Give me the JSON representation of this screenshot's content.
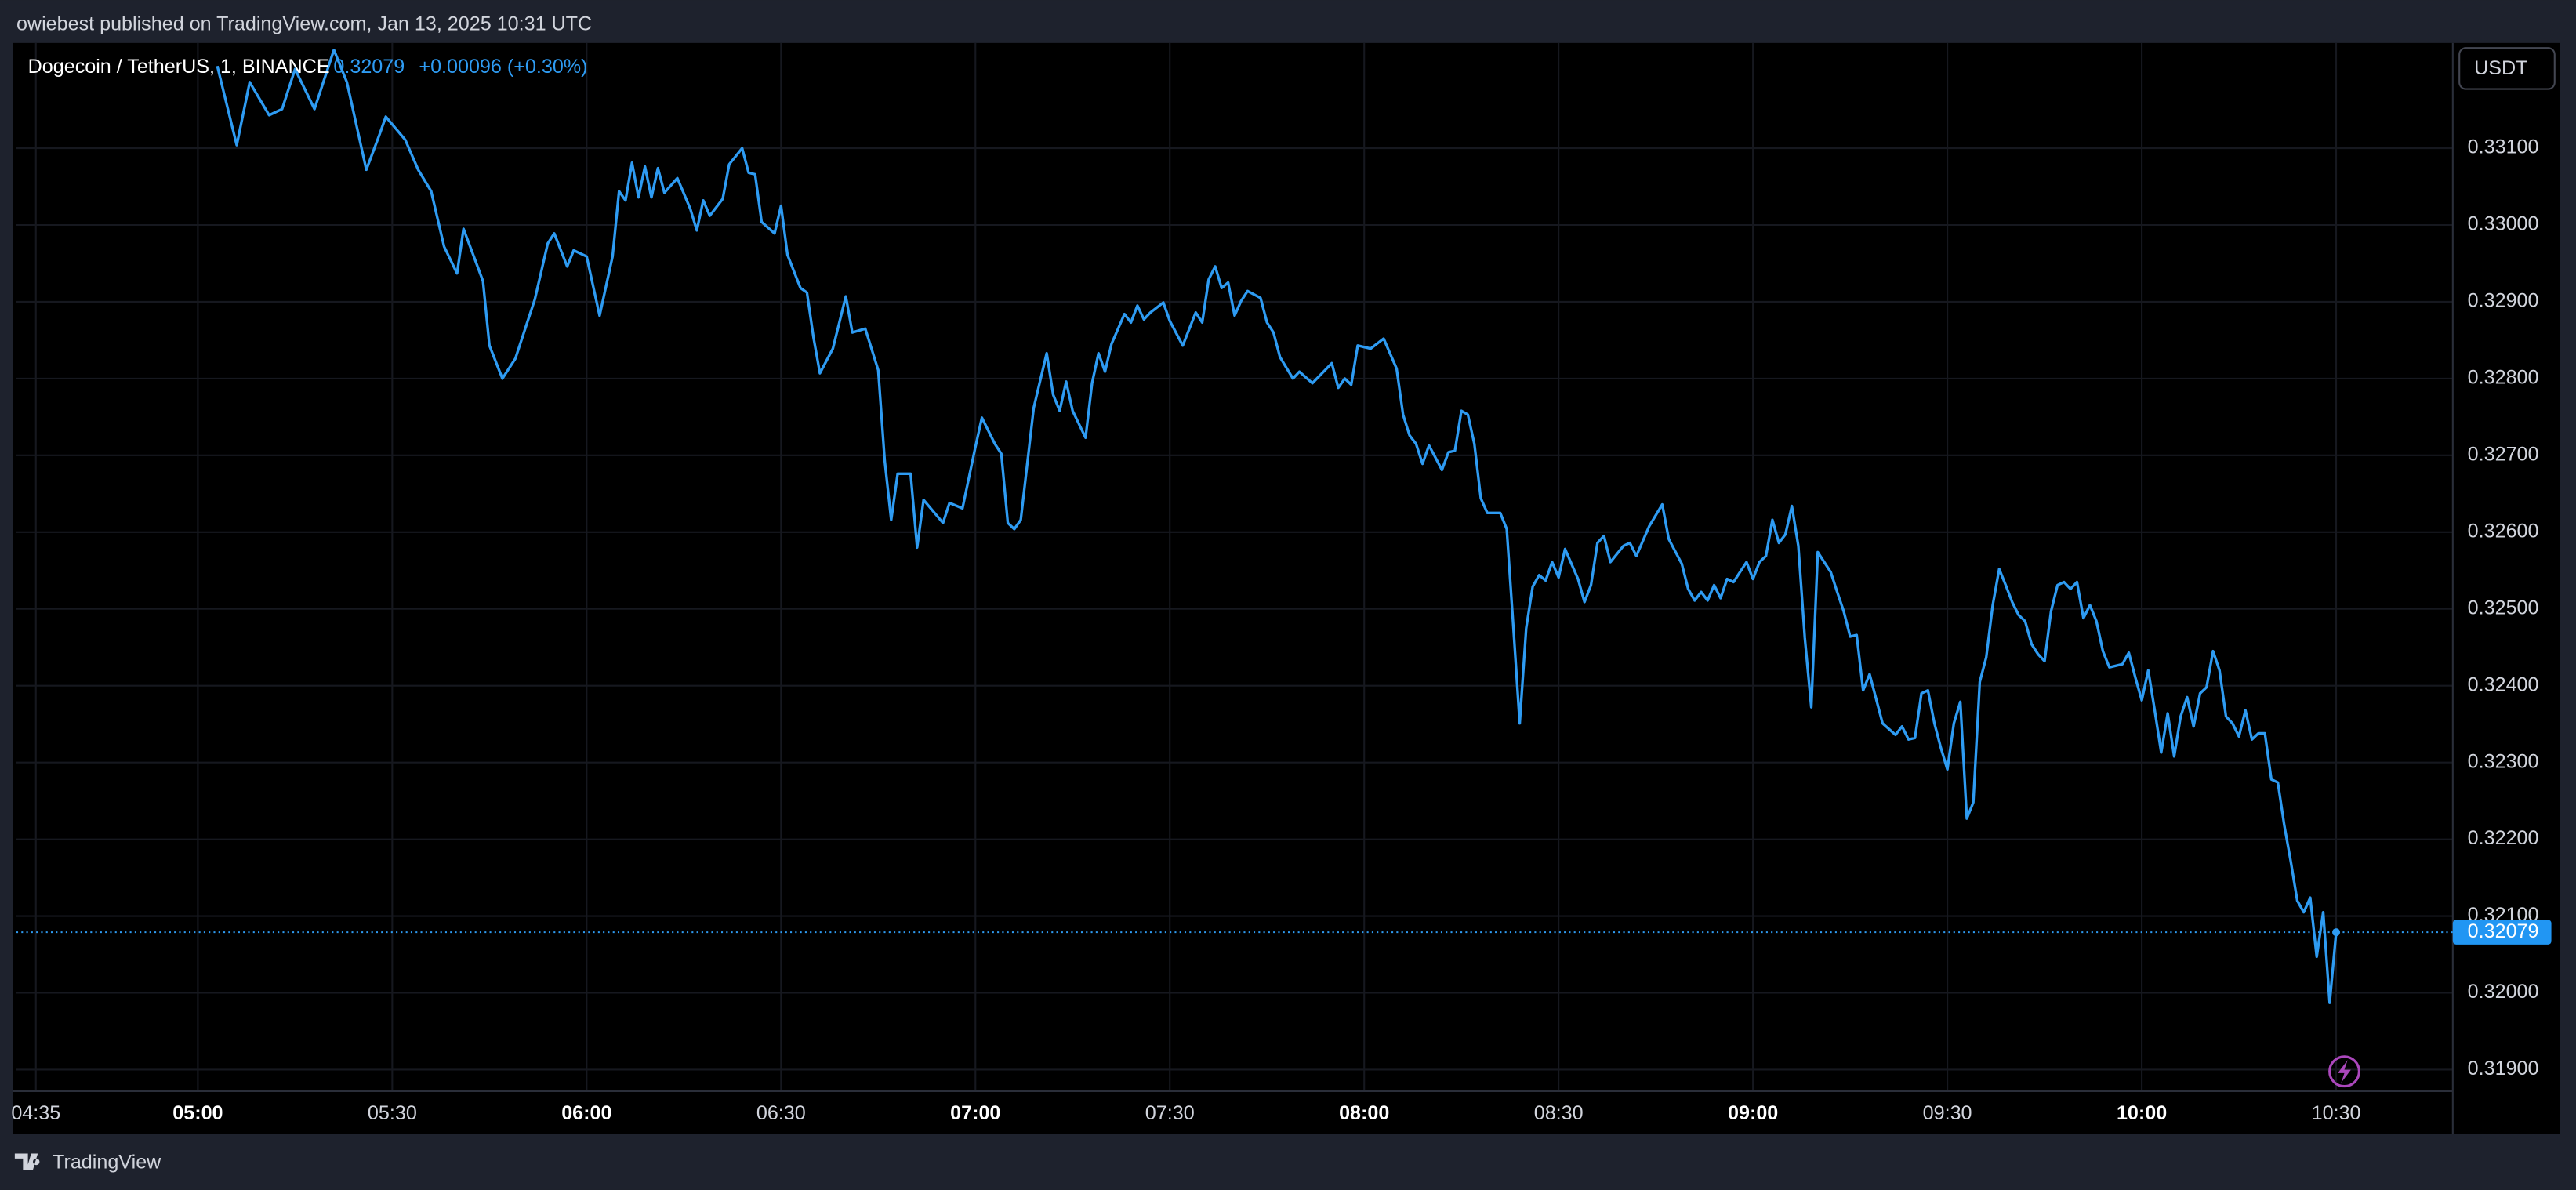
{
  "chart_data": {
    "type": "line",
    "header": "owiebest published on TradingView.com, Jan 13, 2025 10:31 UTC",
    "symbol": "Dogecoin / TetherUS, 1, BINANCE",
    "last_price": 0.32079,
    "change": "+0.00096 (+0.30%)",
    "currency": "USDT",
    "brand": "TradingView",
    "color": "#2e9bf2",
    "grid": true,
    "x": [
      "05:03",
      "05:06",
      "05:08",
      "05:11",
      "05:13",
      "05:15",
      "05:18",
      "05:21",
      "05:23",
      "05:26",
      "05:28",
      "05:29",
      "05:32",
      "05:34",
      "05:36",
      "05:38",
      "05:40",
      "05:41",
      "05:44",
      "05:45",
      "05:47",
      "05:49",
      "05:52",
      "05:54",
      "05:55",
      "05:57",
      "05:58",
      "06:00",
      "06:02",
      "06:04",
      "06:05",
      "06:06",
      "06:07",
      "06:08",
      "06:09",
      "06:10",
      "06:11",
      "06:12",
      "06:14",
      "06:16",
      "06:17",
      "06:18",
      "06:19",
      "06:21",
      "06:22",
      "06:24",
      "06:25",
      "06:26",
      "06:27",
      "06:29",
      "06:30",
      "06:31",
      "06:33",
      "06:34",
      "06:35",
      "06:36",
      "06:38",
      "06:40",
      "06:41",
      "06:43",
      "06:45",
      "06:46",
      "06:47",
      "06:48",
      "06:50",
      "06:51",
      "06:52",
      "06:55",
      "06:56",
      "06:58",
      "07:00",
      "07:01",
      "07:03",
      "07:04",
      "07:05",
      "07:06",
      "07:07",
      "07:09",
      "07:11",
      "07:12",
      "07:13",
      "07:14",
      "07:15",
      "07:17",
      "07:18",
      "07:19",
      "07:20",
      "07:21",
      "07:23",
      "07:24",
      "07:25",
      "07:26",
      "07:27",
      "07:29",
      "07:30",
      "07:32",
      "07:34",
      "07:35",
      "07:36",
      "07:37",
      "07:38",
      "07:39",
      "07:40",
      "07:41",
      "07:42",
      "07:44",
      "07:45",
      "07:46",
      "07:47",
      "07:49",
      "07:50",
      "07:52",
      "07:55",
      "07:56",
      "07:57",
      "07:58",
      "07:59",
      "08:01",
      "08:03",
      "08:05",
      "08:06",
      "08:07",
      "08:08",
      "08:09",
      "08:10",
      "08:12",
      "08:13",
      "08:14",
      "08:15",
      "08:16",
      "08:17",
      "08:18",
      "08:19",
      "08:21",
      "08:22",
      "08:23",
      "08:24",
      "08:25",
      "08:26",
      "08:27",
      "08:28",
      "08:29",
      "08:30",
      "08:31",
      "08:33",
      "08:34",
      "08:35",
      "08:36",
      "08:37",
      "08:38",
      "08:40",
      "08:41",
      "08:42",
      "08:44",
      "08:46",
      "08:47",
      "08:49",
      "08:50",
      "08:51",
      "08:52",
      "08:53",
      "08:54",
      "08:55",
      "08:56",
      "08:57",
      "08:59",
      "09:00",
      "09:01",
      "09:02",
      "09:03",
      "09:04",
      "09:05",
      "09:06",
      "09:07",
      "09:08",
      "09:09",
      "09:10",
      "09:12",
      "09:13",
      "09:14",
      "09:15",
      "09:16",
      "09:17",
      "09:18",
      "09:19",
      "09:20",
      "09:22",
      "09:23",
      "09:24",
      "09:25",
      "09:26",
      "09:27",
      "09:28",
      "09:29",
      "09:30",
      "09:31",
      "09:32",
      "09:33",
      "09:34",
      "09:35",
      "09:36",
      "09:37",
      "09:38",
      "09:39",
      "09:40",
      "09:41",
      "09:42",
      "09:43",
      "09:44",
      "09:45",
      "09:46",
      "09:47",
      "09:48",
      "09:49",
      "09:50",
      "09:51",
      "09:52",
      "09:53",
      "09:54",
      "09:55",
      "09:57",
      "09:58",
      "09:59",
      "10:00",
      "10:01",
      "10:02",
      "10:03",
      "10:04",
      "10:05",
      "10:06",
      "10:07",
      "10:08",
      "10:09",
      "10:10",
      "10:11",
      "10:12",
      "10:13",
      "10:14",
      "10:15",
      "10:16",
      "10:17",
      "10:18",
      "10:19",
      "10:20",
      "10:21",
      "10:22",
      "10:23",
      "10:24",
      "10:25",
      "10:26",
      "10:27",
      "10:28",
      "10:29",
      "10:30"
    ],
    "values": [
      0.33207,
      0.33104,
      0.33186,
      0.33143,
      0.33151,
      0.33203,
      0.33151,
      0.33228,
      0.33186,
      0.33072,
      0.33117,
      0.33141,
      0.33111,
      0.33072,
      0.33044,
      0.32972,
      0.32937,
      0.32995,
      0.32927,
      0.32843,
      0.328,
      0.32826,
      0.32903,
      0.32976,
      0.32989,
      0.32946,
      0.32967,
      0.32959,
      0.32882,
      0.32959,
      0.33044,
      0.33032,
      0.33081,
      0.33036,
      0.33076,
      0.33036,
      0.33074,
      0.33042,
      0.33061,
      0.33021,
      0.32993,
      0.33032,
      0.33012,
      0.33034,
      0.33079,
      0.331,
      0.33068,
      0.33066,
      0.33004,
      0.32989,
      0.33025,
      0.32961,
      0.32918,
      0.32912,
      0.32854,
      0.32807,
      0.32839,
      0.32907,
      0.3286,
      0.32865,
      0.32811,
      0.32693,
      0.32616,
      0.32676,
      0.32676,
      0.3258,
      0.32642,
      0.32612,
      0.32638,
      0.32631,
      0.32711,
      0.32749,
      0.32715,
      0.32702,
      0.32612,
      0.32604,
      0.32616,
      0.32762,
      0.32833,
      0.32779,
      0.32758,
      0.32796,
      0.32758,
      0.32723,
      0.32794,
      0.32833,
      0.32809,
      0.32845,
      0.32884,
      0.32873,
      0.32895,
      0.32877,
      0.32886,
      0.32899,
      0.32875,
      0.32843,
      0.32886,
      0.32873,
      0.32929,
      0.32946,
      0.32918,
      0.32925,
      0.32882,
      0.32901,
      0.32914,
      0.32905,
      0.32873,
      0.3286,
      0.32828,
      0.328,
      0.32809,
      0.32794,
      0.3282,
      0.32788,
      0.328,
      0.32792,
      0.32843,
      0.32839,
      0.32852,
      0.32813,
      0.32753,
      0.32726,
      0.32715,
      0.32689,
      0.32713,
      0.32681,
      0.32704,
      0.32706,
      0.32758,
      0.32753,
      0.32715,
      0.32644,
      0.32625,
      0.32625,
      0.32604,
      0.32479,
      0.32351,
      0.32475,
      0.32529,
      0.32544,
      0.32537,
      0.32561,
      0.32541,
      0.32578,
      0.32539,
      0.32509,
      0.32531,
      0.32586,
      0.32595,
      0.32561,
      0.32582,
      0.32586,
      0.32569,
      0.32608,
      0.32636,
      0.32591,
      0.32559,
      0.32526,
      0.32511,
      0.32522,
      0.32511,
      0.32531,
      0.32514,
      0.32539,
      0.32535,
      0.32561,
      0.32539,
      0.32561,
      0.32569,
      0.32616,
      0.32586,
      0.32597,
      0.32634,
      0.32582,
      0.32462,
      0.32372,
      0.32574,
      0.32548,
      0.32522,
      0.32497,
      0.32464,
      0.32466,
      0.32394,
      0.32415,
      0.32383,
      0.32351,
      0.32336,
      0.32347,
      0.3233,
      0.32332,
      0.3239,
      0.32394,
      0.32351,
      0.32319,
      0.32291,
      0.32351,
      0.32379,
      0.32227,
      0.32248,
      0.32405,
      0.32437,
      0.32505,
      0.32552,
      0.32531,
      0.32509,
      0.32492,
      0.32484,
      0.32454,
      0.32441,
      0.32432,
      0.32497,
      0.32531,
      0.32535,
      0.32526,
      0.32535,
      0.32488,
      0.32505,
      0.32484,
      0.32445,
      0.32424,
      0.32428,
      0.32443,
      0.32411,
      0.32381,
      0.3242,
      0.32368,
      0.32313,
      0.32364,
      0.32308,
      0.3236,
      0.32385,
      0.32347,
      0.3239,
      0.32398,
      0.32445,
      0.3242,
      0.3236,
      0.32351,
      0.32334,
      0.32368,
      0.3233,
      0.32338,
      0.32338,
      0.32278,
      0.32274,
      0.32218,
      0.32171,
      0.3212,
      0.32105,
      0.32124,
      0.32047,
      0.32105,
      0.31987,
      0.32079
    ],
    "xlim": [
      "04:32",
      "10:48"
    ],
    "xticks": [
      "04:35",
      "05:00",
      "05:30",
      "06:00",
      "06:30",
      "07:00",
      "07:30",
      "08:00",
      "08:30",
      "09:00",
      "09:30",
      "10:00",
      "10:30"
    ],
    "ylim": [
      0.31872,
      0.33237
    ],
    "yticks": [
      {
        "value": 0.319,
        "label": "0.31900"
      },
      {
        "value": 0.32,
        "label": "0.32000"
      },
      {
        "value": 0.321,
        "label": "0.32100"
      },
      {
        "value": 0.322,
        "label": "0.32200"
      },
      {
        "value": 0.323,
        "label": "0.32300"
      },
      {
        "value": 0.324,
        "label": "0.32400"
      },
      {
        "value": 0.325,
        "label": "0.32500"
      },
      {
        "value": 0.326,
        "label": "0.32600"
      },
      {
        "value": 0.327,
        "label": "0.32700"
      },
      {
        "value": 0.328,
        "label": "0.32800"
      },
      {
        "value": 0.329,
        "label": "0.32900"
      },
      {
        "value": 0.33,
        "label": "0.33000"
      },
      {
        "value": 0.331,
        "label": "0.33100"
      }
    ]
  }
}
